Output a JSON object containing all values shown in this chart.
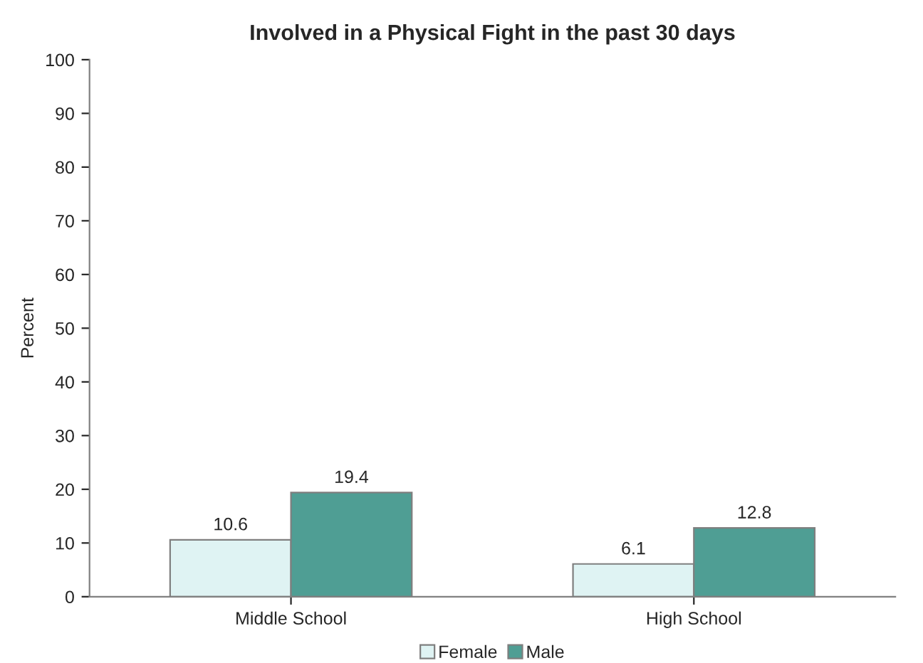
{
  "chart_data": {
    "type": "bar",
    "title": "Involved in a Physical Fight in the past 30 days",
    "ylabel": "Percent",
    "categories": [
      "Middle School",
      "High School"
    ],
    "series": [
      {
        "name": "Female",
        "color": "#dff3f3",
        "values": [
          10.6,
          6.1
        ]
      },
      {
        "name": "Male",
        "color": "#4f9e94",
        "values": [
          19.4,
          12.8
        ]
      }
    ],
    "ylim": [
      0,
      100
    ],
    "yticks": [
      0,
      10,
      20,
      30,
      40,
      50,
      60,
      70,
      80,
      90,
      100
    ],
    "grid": false,
    "legend": "bottom",
    "data_labels": true
  }
}
